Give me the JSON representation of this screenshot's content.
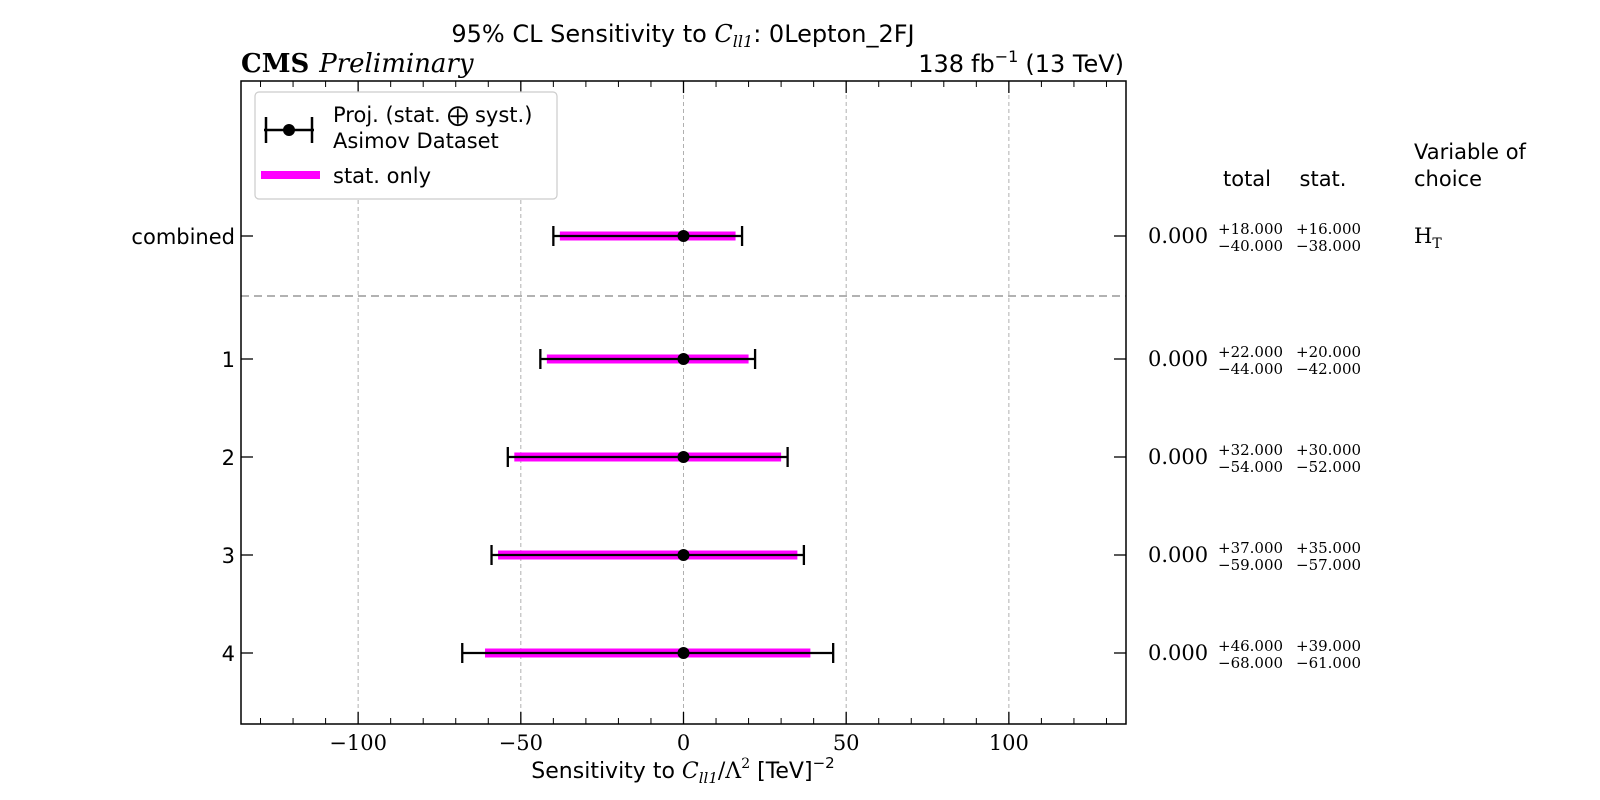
{
  "chart_data": {
    "type": "errorbar",
    "title_prefix": "95% CL Sensitivity to ",
    "title_var": "C",
    "title_var_sub": "ll1",
    "title_suffix": ": 0Lepton_2FJ",
    "experiment": "CMS",
    "status": "Preliminary",
    "lumi": "138",
    "lumi_unit": "fb",
    "lumi_exp": "−1",
    "energy": "(13 TeV)",
    "xlabel_prefix": "Sensitivity to ",
    "xlabel_var": "C",
    "xlabel_var_sub": "ll1",
    "xlabel_mid": "/Λ",
    "xlabel_mid_sup": "2",
    "xlabel_unit": " [TeV]",
    "xlabel_unit_sup": "−2",
    "xlim": [
      -136,
      136
    ],
    "xticks": [
      -100,
      -50,
      0,
      50,
      100
    ],
    "xtick_labels": [
      "−100",
      "−50",
      "0",
      "50",
      "100"
    ],
    "legend": {
      "entry1_line1": "Proj. (stat. ⨁ syst.)",
      "entry1_line2": "Asimov Dataset",
      "entry2": "stat. only"
    },
    "columns": {
      "total": "total",
      "stat": "stat.",
      "voc_line1": "Variable of",
      "voc_line2": "choice"
    },
    "rows": [
      {
        "label": "combined",
        "central": 0,
        "central_text": "0.000",
        "total_up": 18,
        "total_down": -40,
        "stat_up": 16,
        "stat_down": -38,
        "total_up_text": "+18.000",
        "total_down_text": "−40.000",
        "stat_up_text": "+16.000",
        "stat_down_text": "−38.000",
        "voc": "H",
        "voc_sub": "T"
      },
      {
        "label": "1",
        "central": 0,
        "central_text": "0.000",
        "total_up": 22,
        "total_down": -44,
        "stat_up": 20,
        "stat_down": -42,
        "total_up_text": "+22.000",
        "total_down_text": "−44.000",
        "stat_up_text": "+20.000",
        "stat_down_text": "−42.000",
        "voc": "",
        "voc_sub": ""
      },
      {
        "label": "2",
        "central": 0,
        "central_text": "0.000",
        "total_up": 32,
        "total_down": -54,
        "stat_up": 30,
        "stat_down": -52,
        "total_up_text": "+32.000",
        "total_down_text": "−54.000",
        "stat_up_text": "+30.000",
        "stat_down_text": "−52.000",
        "voc": "",
        "voc_sub": ""
      },
      {
        "label": "3",
        "central": 0,
        "central_text": "0.000",
        "total_up": 37,
        "total_down": -59,
        "stat_up": 35,
        "stat_down": -57,
        "total_up_text": "+37.000",
        "total_down_text": "−59.000",
        "stat_up_text": "+35.000",
        "stat_down_text": "−57.000",
        "voc": "",
        "voc_sub": ""
      },
      {
        "label": "4",
        "central": 0,
        "central_text": "0.000",
        "total_up": 46,
        "total_down": -68,
        "stat_up": 39,
        "stat_down": -61,
        "total_up_text": "+46.000",
        "total_down_text": "−68.000",
        "stat_up_text": "+39.000",
        "stat_down_text": "−61.000",
        "voc": "",
        "voc_sub": ""
      }
    ],
    "colors": {
      "stat_band": "#ff00ff",
      "total_bar": "#000000",
      "grid": "#b0b0b0",
      "separator": "#999999",
      "legend_border": "#cccccc"
    }
  }
}
